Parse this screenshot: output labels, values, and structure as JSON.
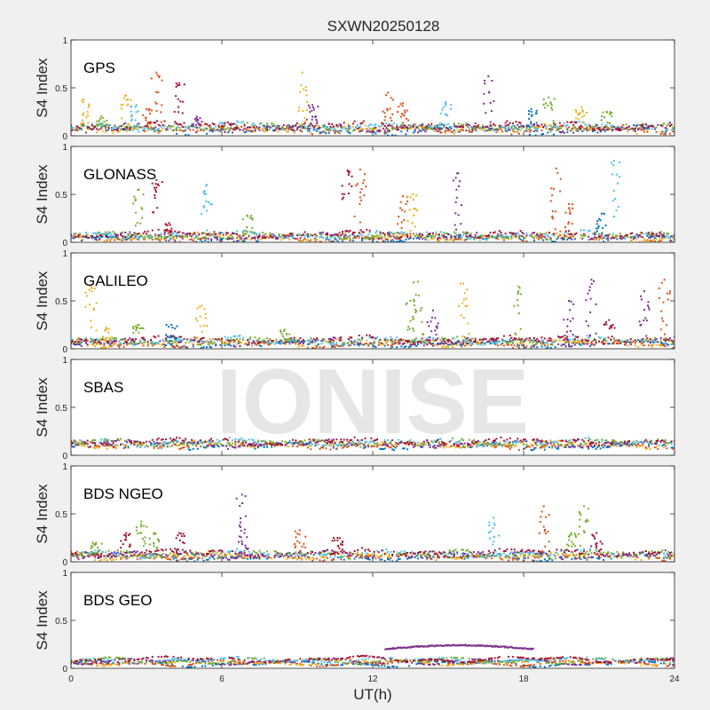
{
  "figure": {
    "title": "SXWN20250128",
    "xlabel": "UT(h)",
    "watermark": "IONISE",
    "background": "#f0f0f0"
  },
  "chart_data": {
    "type": "scatter",
    "xlim": [
      0,
      24
    ],
    "xticks": [
      0,
      6,
      12,
      18,
      24
    ],
    "xtick_labels": [
      "0",
      "6",
      "12",
      "18",
      "24"
    ],
    "grid": false,
    "series_colors": [
      "#0072bd",
      "#d95319",
      "#edb120",
      "#7e2f8e",
      "#77ac30",
      "#4dbeee",
      "#a2142f"
    ],
    "panels": [
      {
        "label": "GPS",
        "ylabel": "S4 Index",
        "ylim": [
          0,
          1
        ],
        "yticks": [
          0,
          0.5,
          1
        ],
        "ytick_labels": [
          "0",
          "0.5",
          "1"
        ],
        "baseline": 0.08,
        "noise": 0.05,
        "spikes": [
          {
            "x": 0.5,
            "y": 0.38,
            "c": 2
          },
          {
            "x": 1.2,
            "y": 0.2,
            "c": 4
          },
          {
            "x": 2.2,
            "y": 0.42,
            "c": 2
          },
          {
            "x": 2.6,
            "y": 0.32,
            "c": 5
          },
          {
            "x": 3.0,
            "y": 0.28,
            "c": 1
          },
          {
            "x": 3.4,
            "y": 0.66,
            "c": 1
          },
          {
            "x": 4.3,
            "y": 0.55,
            "c": 6
          },
          {
            "x": 5.0,
            "y": 0.2,
            "c": 3
          },
          {
            "x": 9.2,
            "y": 0.66,
            "c": 2
          },
          {
            "x": 9.6,
            "y": 0.32,
            "c": 3
          },
          {
            "x": 12.6,
            "y": 0.45,
            "c": 1
          },
          {
            "x": 13.2,
            "y": 0.34,
            "c": 1
          },
          {
            "x": 14.9,
            "y": 0.35,
            "c": 5
          },
          {
            "x": 16.6,
            "y": 0.62,
            "c": 3
          },
          {
            "x": 18.3,
            "y": 0.28,
            "c": 0
          },
          {
            "x": 19.0,
            "y": 0.4,
            "c": 4
          },
          {
            "x": 20.3,
            "y": 0.3,
            "c": 2
          },
          {
            "x": 21.3,
            "y": 0.25,
            "c": 4
          }
        ]
      },
      {
        "label": "GLONASS",
        "ylabel": "S4 Index",
        "ylim": [
          0,
          1
        ],
        "yticks": [
          0,
          0.5,
          1
        ],
        "ytick_labels": [
          "0",
          "0.5",
          "1"
        ],
        "baseline": 0.06,
        "noise": 0.04,
        "spikes": [
          {
            "x": 2.7,
            "y": 0.55,
            "c": 4
          },
          {
            "x": 3.4,
            "y": 0.65,
            "c": 6
          },
          {
            "x": 3.9,
            "y": 0.2,
            "c": 6
          },
          {
            "x": 5.4,
            "y": 0.6,
            "c": 5
          },
          {
            "x": 7.0,
            "y": 0.28,
            "c": 4
          },
          {
            "x": 11.0,
            "y": 0.75,
            "c": 6
          },
          {
            "x": 11.5,
            "y": 0.76,
            "c": 1
          },
          {
            "x": 13.2,
            "y": 0.48,
            "c": 1
          },
          {
            "x": 13.6,
            "y": 0.5,
            "c": 2
          },
          {
            "x": 15.4,
            "y": 0.72,
            "c": 3
          },
          {
            "x": 19.3,
            "y": 0.77,
            "c": 1
          },
          {
            "x": 19.8,
            "y": 0.4,
            "c": 1
          },
          {
            "x": 21.6,
            "y": 0.85,
            "c": 5
          },
          {
            "x": 21.1,
            "y": 0.3,
            "c": 0
          }
        ]
      },
      {
        "label": "GALILEO",
        "ylabel": "S4 Index",
        "ylim": [
          0,
          1
        ],
        "yticks": [
          0,
          0.5,
          1
        ],
        "ytick_labels": [
          "0",
          "0.5",
          "1"
        ],
        "baseline": 0.07,
        "noise": 0.04,
        "spikes": [
          {
            "x": 0.8,
            "y": 0.65,
            "c": 2
          },
          {
            "x": 1.4,
            "y": 0.22,
            "c": 2
          },
          {
            "x": 2.7,
            "y": 0.25,
            "c": 4
          },
          {
            "x": 4.0,
            "y": 0.25,
            "c": 0
          },
          {
            "x": 5.2,
            "y": 0.45,
            "c": 2
          },
          {
            "x": 8.5,
            "y": 0.2,
            "c": 4
          },
          {
            "x": 13.5,
            "y": 0.5,
            "c": 4
          },
          {
            "x": 13.8,
            "y": 0.7,
            "c": 4
          },
          {
            "x": 15.6,
            "y": 0.68,
            "c": 2
          },
          {
            "x": 14.4,
            "y": 0.4,
            "c": 3
          },
          {
            "x": 17.8,
            "y": 0.65,
            "c": 4
          },
          {
            "x": 19.8,
            "y": 0.5,
            "c": 3
          },
          {
            "x": 20.7,
            "y": 0.72,
            "c": 3
          },
          {
            "x": 21.4,
            "y": 0.3,
            "c": 6
          },
          {
            "x": 22.8,
            "y": 0.6,
            "c": 3
          },
          {
            "x": 23.6,
            "y": 0.72,
            "c": 1
          }
        ]
      },
      {
        "label": "SBAS",
        "ylabel": "S4 Index",
        "ylim": [
          0,
          1
        ],
        "yticks": [
          0,
          0.5,
          1
        ],
        "ytick_labels": [
          "0",
          "0.5",
          "1"
        ],
        "baseline": 0.12,
        "noise": 0.04,
        "spikes": []
      },
      {
        "label": "BDS NGEO",
        "ylabel": "S4 Index",
        "ylim": [
          0,
          1
        ],
        "yticks": [
          0,
          0.5,
          1
        ],
        "ytick_labels": [
          "0",
          "0.5",
          "1"
        ],
        "baseline": 0.07,
        "noise": 0.04,
        "spikes": [
          {
            "x": 1.0,
            "y": 0.2,
            "c": 4
          },
          {
            "x": 2.2,
            "y": 0.3,
            "c": 6
          },
          {
            "x": 2.8,
            "y": 0.42,
            "c": 4
          },
          {
            "x": 3.3,
            "y": 0.3,
            "c": 4
          },
          {
            "x": 4.3,
            "y": 0.3,
            "c": 6
          },
          {
            "x": 6.8,
            "y": 0.7,
            "c": 3
          },
          {
            "x": 6.9,
            "y": 0.3,
            "c": 3
          },
          {
            "x": 9.1,
            "y": 0.33,
            "c": 1
          },
          {
            "x": 10.6,
            "y": 0.25,
            "c": 6
          },
          {
            "x": 16.8,
            "y": 0.46,
            "c": 5
          },
          {
            "x": 18.8,
            "y": 0.58,
            "c": 1
          },
          {
            "x": 19.9,
            "y": 0.3,
            "c": 4
          },
          {
            "x": 20.4,
            "y": 0.58,
            "c": 4
          },
          {
            "x": 20.9,
            "y": 0.3,
            "c": 6
          }
        ]
      },
      {
        "label": "BDS GEO",
        "ylabel": "S4 Index",
        "ylim": [
          0,
          1
        ],
        "yticks": [
          0,
          0.5,
          1
        ],
        "ytick_labels": [
          "0",
          "0.5",
          "1"
        ],
        "baseline": 0.07,
        "noise": 0.01,
        "spikes": [],
        "arc": {
          "x0": 12.5,
          "x1": 18.4,
          "y0": 0.2,
          "ypeak": 0.24,
          "c": 3
        }
      }
    ]
  }
}
